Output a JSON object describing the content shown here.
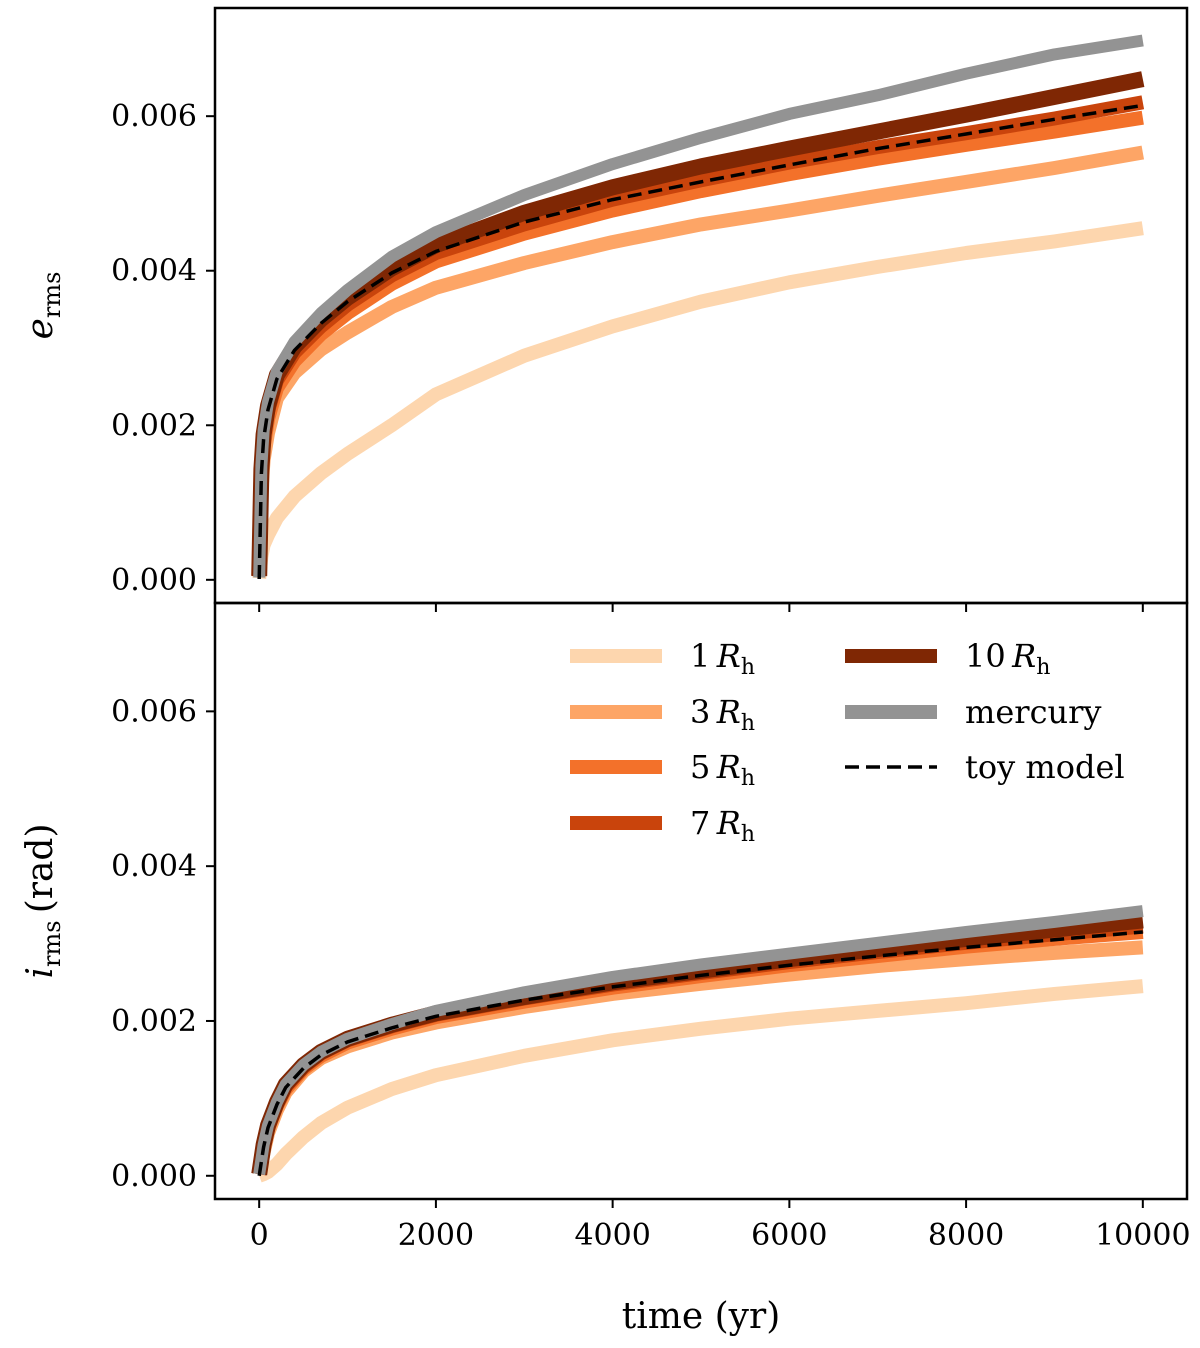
{
  "chart_data": [
    {
      "type": "line",
      "panel": "top",
      "ylabel": {
        "base": "e",
        "sub": "rms",
        "unit": ""
      },
      "xlim": [
        -500,
        10500
      ],
      "ylim": [
        -0.0003,
        0.0074
      ],
      "yticks": [
        0.0,
        0.002,
        0.004,
        0.006
      ],
      "ytick_labels": [
        "0.000",
        "0.002",
        "0.004",
        "0.006"
      ],
      "xticks": [
        0,
        2000,
        4000,
        6000,
        8000,
        10000
      ],
      "xtick_labels": [
        "",
        "",
        "",
        "",
        "",
        ""
      ],
      "x": [
        0,
        25,
        50,
        100,
        200,
        400,
        700,
        1000,
        1500,
        2000,
        3000,
        4000,
        5000,
        6000,
        7000,
        8000,
        9000,
        10000
      ],
      "series": [
        {
          "name": "1 R_h",
          "color": "#fdd6ae",
          "width": 14,
          "values": [
            2e-05,
            0.0003,
            0.00045,
            0.00058,
            0.0008,
            0.00108,
            0.00138,
            0.00163,
            0.002,
            0.0024,
            0.0029,
            0.00328,
            0.0036,
            0.00385,
            0.00405,
            0.00423,
            0.00438,
            0.00455
          ]
        },
        {
          "name": "3 R_h",
          "color": "#fda566",
          "width": 14,
          "values": [
            5e-05,
            0.00115,
            0.00155,
            0.0019,
            0.00235,
            0.00268,
            0.00298,
            0.0032,
            0.00353,
            0.00378,
            0.0041,
            0.00437,
            0.0046,
            0.00478,
            0.00497,
            0.00515,
            0.00533,
            0.00553
          ]
        },
        {
          "name": "5 R_h",
          "color": "#f3712a",
          "width": 14,
          "values": [
            5e-05,
            0.0013,
            0.00172,
            0.00208,
            0.00248,
            0.00283,
            0.00318,
            0.00345,
            0.00383,
            0.00412,
            0.00448,
            0.00478,
            0.00503,
            0.00525,
            0.00545,
            0.00563,
            0.0058,
            0.00598
          ]
        },
        {
          "name": "7 R_h",
          "color": "#c9440c",
          "width": 14,
          "values": [
            5e-05,
            0.00138,
            0.00182,
            0.00218,
            0.00258,
            0.00294,
            0.00328,
            0.00356,
            0.00394,
            0.00423,
            0.0046,
            0.00492,
            0.00517,
            0.0054,
            0.0056,
            0.00578,
            0.00597,
            0.00618
          ]
        },
        {
          "name": "10 R_h",
          "color": "#7f2704",
          "width": 16,
          "values": [
            5e-05,
            0.00143,
            0.00188,
            0.00225,
            0.00265,
            0.00302,
            0.00337,
            0.00365,
            0.00403,
            0.00433,
            0.00475,
            0.00508,
            0.00535,
            0.00558,
            0.0058,
            0.00602,
            0.00625,
            0.00648
          ]
        },
        {
          "name": "mercury",
          "color": "#939393",
          "width": 12,
          "values": [
            3e-05,
            0.00148,
            0.00193,
            0.0023,
            0.0027,
            0.00308,
            0.00345,
            0.00375,
            0.00418,
            0.0045,
            0.00498,
            0.00538,
            0.00572,
            0.00603,
            0.00627,
            0.00655,
            0.0068,
            0.00698
          ]
        },
        {
          "name": "toy model",
          "color": "#000000",
          "width": 3.5,
          "dash": "14,7",
          "values": [
            1e-05,
            0.00138,
            0.00182,
            0.0022,
            0.0026,
            0.00297,
            0.00332,
            0.0036,
            0.00397,
            0.00425,
            0.00463,
            0.00492,
            0.00515,
            0.00537,
            0.00558,
            0.00577,
            0.00596,
            0.00614
          ]
        }
      ]
    },
    {
      "type": "line",
      "panel": "bottom",
      "ylabel": {
        "base": "i",
        "sub": "rms",
        "unit": "(rad)"
      },
      "xlabel": "time (yr)",
      "xlim": [
        -500,
        10500
      ],
      "ylim": [
        -0.0003,
        0.0074
      ],
      "yticks": [
        0.0,
        0.002,
        0.004,
        0.006
      ],
      "ytick_labels": [
        "0.000",
        "0.002",
        "0.004",
        "0.006"
      ],
      "xticks": [
        0,
        2000,
        4000,
        6000,
        8000,
        10000
      ],
      "xtick_labels": [
        "0",
        "2000",
        "4000",
        "6000",
        "8000",
        "10000"
      ],
      "x": [
        0,
        50,
        100,
        200,
        300,
        500,
        700,
        1000,
        1500,
        2000,
        3000,
        4000,
        5000,
        6000,
        7000,
        8000,
        9000,
        10000
      ],
      "series": [
        {
          "name": "1 R_h",
          "color": "#fdd6ae",
          "width": 14,
          "values": [
            0.0,
            2e-05,
            5e-05,
            0.00015,
            0.00028,
            0.0005,
            0.00068,
            0.00088,
            0.00112,
            0.0013,
            0.00155,
            0.00175,
            0.0019,
            0.00203,
            0.00213,
            0.00223,
            0.00235,
            0.00245
          ]
        },
        {
          "name": "3 R_h",
          "color": "#fda566",
          "width": 14,
          "values": [
            2e-05,
            0.0003,
            0.00055,
            0.00085,
            0.00108,
            0.00135,
            0.00152,
            0.00167,
            0.00185,
            0.00198,
            0.00218,
            0.00235,
            0.00248,
            0.0026,
            0.00271,
            0.0028,
            0.00288,
            0.00295
          ]
        },
        {
          "name": "5 R_h",
          "color": "#f3712a",
          "width": 14,
          "values": [
            2e-05,
            0.00035,
            0.0006,
            0.0009,
            0.00112,
            0.00138,
            0.00155,
            0.00172,
            0.0019,
            0.00205,
            0.00225,
            0.00243,
            0.00258,
            0.00272,
            0.00284,
            0.00296,
            0.00306,
            0.00315
          ]
        },
        {
          "name": "7 R_h",
          "color": "#c9440c",
          "width": 14,
          "values": [
            2e-05,
            0.00038,
            0.00062,
            0.00092,
            0.00115,
            0.0014,
            0.00158,
            0.00175,
            0.00193,
            0.00208,
            0.00229,
            0.00247,
            0.00262,
            0.00276,
            0.00289,
            0.00301,
            0.00312,
            0.00322
          ]
        },
        {
          "name": "10 R_h",
          "color": "#7f2704",
          "width": 16,
          "values": [
            2e-05,
            0.0004,
            0.00065,
            0.00095,
            0.00118,
            0.00143,
            0.0016,
            0.00177,
            0.00195,
            0.0021,
            0.00231,
            0.0025,
            0.00265,
            0.0028,
            0.00293,
            0.00306,
            0.00318,
            0.0033
          ]
        },
        {
          "name": "mercury",
          "color": "#939393",
          "width": 12,
          "values": [
            2e-05,
            0.0004,
            0.00065,
            0.00095,
            0.00118,
            0.00143,
            0.0016,
            0.00177,
            0.00196,
            0.00213,
            0.00237,
            0.00257,
            0.00273,
            0.00287,
            0.00301,
            0.00315,
            0.00328,
            0.00342
          ]
        },
        {
          "name": "toy model",
          "color": "#000000",
          "width": 3.5,
          "dash": "14,7",
          "values": [
            0.0,
            0.00037,
            0.00062,
            0.00092,
            0.00114,
            0.00139,
            0.00156,
            0.00173,
            0.00191,
            0.00206,
            0.00227,
            0.00244,
            0.00259,
            0.00272,
            0.00284,
            0.00295,
            0.00305,
            0.00315
          ]
        }
      ]
    }
  ],
  "legend": {
    "placement": "upper-right of bottom panel",
    "entries": [
      {
        "base": "1",
        "italic": "R",
        "sub": "h",
        "color": "#fdd6ae"
      },
      {
        "base": "3",
        "italic": "R",
        "sub": "h",
        "color": "#fda566"
      },
      {
        "base": "5",
        "italic": "R",
        "sub": "h",
        "color": "#f3712a"
      },
      {
        "base": "7",
        "italic": "R",
        "sub": "h",
        "color": "#c9440c"
      },
      {
        "base": "10",
        "italic": "R",
        "sub": "h",
        "color": "#7f2704"
      },
      {
        "base": "mercury",
        "italic": "",
        "sub": "",
        "color": "#939393"
      },
      {
        "base": "toy model",
        "italic": "",
        "sub": "",
        "color": "#000000",
        "dashed": true
      }
    ]
  }
}
